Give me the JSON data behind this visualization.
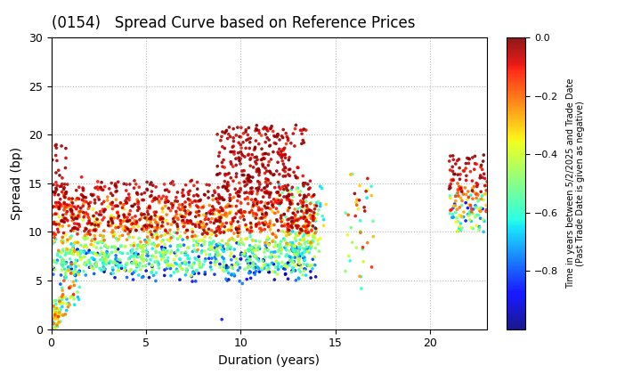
{
  "title": "(0154)   Spread Curve based on Reference Prices",
  "xlabel": "Duration (years)",
  "ylabel": "Spread (bp)",
  "colorbar_label_line1": "Time in years between 5/2/2025 and Trade Date",
  "colorbar_label_line2": "(Past Trade Date is given as negative)",
  "xlim": [
    0,
    23
  ],
  "ylim": [
    0,
    30
  ],
  "xticks": [
    0,
    5,
    10,
    15,
    20
  ],
  "yticks": [
    0,
    5,
    10,
    15,
    20,
    25,
    30
  ],
  "cmap": "jet",
  "vmin": -1.0,
  "vmax": 0.0,
  "colorbar_ticks": [
    0.0,
    -0.2,
    -0.4,
    -0.6,
    -0.8
  ],
  "background_color": "#ffffff",
  "grid_color": "#888888",
  "point_size": 7,
  "seed": 42
}
